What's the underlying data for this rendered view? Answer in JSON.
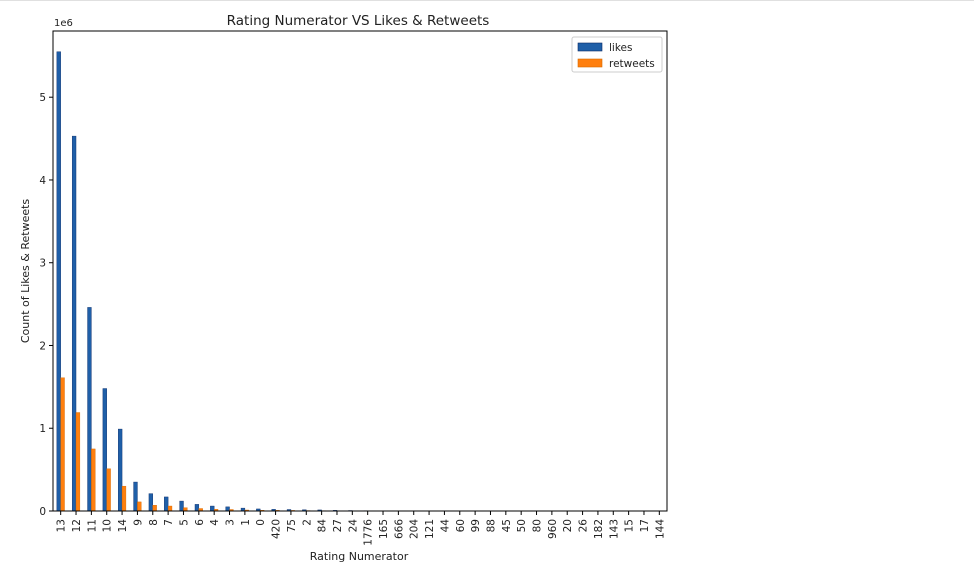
{
  "chart_data": {
    "type": "bar",
    "title": "Rating Numerator VS Likes & Retweets",
    "xlabel": "Rating Numerator",
    "ylabel": "Count of Likes & Retweets",
    "y_offset_label": "1e6",
    "ylim": [
      0,
      5.8
    ],
    "y_ticks": [
      0,
      1,
      2,
      3,
      4,
      5
    ],
    "legend_position": "top-right",
    "categories": [
      "13",
      "12",
      "11",
      "10",
      "14",
      "9",
      "8",
      "7",
      "5",
      "6",
      "4",
      "3",
      "1",
      "0",
      "420",
      "75",
      "2",
      "84",
      "27",
      "24",
      "1776",
      "165",
      "666",
      "204",
      "121",
      "44",
      "60",
      "99",
      "88",
      "45",
      "50",
      "80",
      "960",
      "20",
      "26",
      "182",
      "143",
      "15",
      "17",
      "144"
    ],
    "series": [
      {
        "name": "likes",
        "color": "#1f5fa8",
        "values": [
          5.55,
          4.53,
          2.46,
          1.48,
          0.99,
          0.35,
          0.21,
          0.17,
          0.12,
          0.08,
          0.06,
          0.05,
          0.035,
          0.025,
          0.02,
          0.018,
          0.015,
          0.013,
          0.008,
          0.006,
          0.004,
          0.003,
          0.002,
          0.002,
          0.002,
          0.002,
          0.001,
          0.001,
          0.001,
          0.001,
          0.001,
          0.001,
          0.001,
          0.001,
          0.001,
          0.001,
          0.001,
          0.0005,
          0.0005,
          0.0005
        ]
      },
      {
        "name": "retweets",
        "color": "#ff7f0e",
        "values": [
          1.61,
          1.19,
          0.75,
          0.51,
          0.3,
          0.11,
          0.07,
          0.06,
          0.04,
          0.03,
          0.02,
          0.018,
          0.012,
          0.009,
          0.008,
          0.007,
          0.005,
          0.004,
          0.003,
          0.002,
          0.002,
          0.001,
          0.001,
          0.001,
          0.001,
          0.001,
          0.0005,
          0.0005,
          0.0005,
          0.0005,
          0.0005,
          0.0005,
          0.0005,
          0.0005,
          0.0005,
          0.0005,
          0.0005,
          0.0003,
          0.0003,
          0.0003
        ]
      }
    ]
  }
}
